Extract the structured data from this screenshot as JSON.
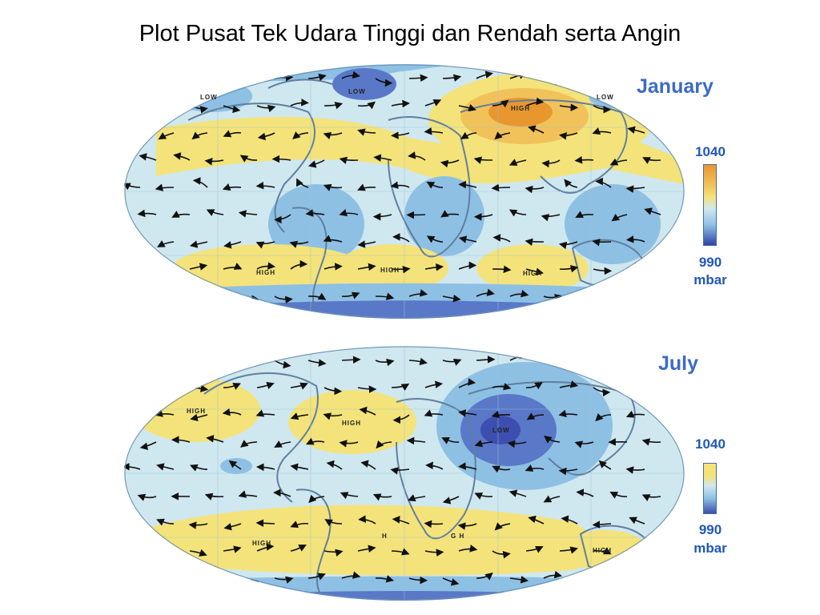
{
  "title": "Plot Pusat Tek Udara Tinggi dan Rendah serta Angin",
  "colors": {
    "high_pressure": "#e8972e",
    "mid_high": "#f4e37a",
    "neutral": "#cfe7ef",
    "mid_low": "#8ec0e4",
    "low_pressure": "#2e44a8"
  },
  "maps": [
    {
      "month": "January",
      "scale_max": "1040",
      "scale_min": "990",
      "scale_unit": "mbar",
      "labels": {
        "low_pacific": "LOW",
        "low_atlantic": "LOW",
        "low_asia": "LOW",
        "high_siberia": "HIGH",
        "high_pacific_s": "HIGH",
        "high_atlantic_s": "HIGH",
        "high_indian_s": "HIGH"
      }
    },
    {
      "month": "July",
      "scale_max": "1040",
      "scale_min": "990",
      "scale_unit": "mbar",
      "labels": {
        "high_pacific_n": "HIGH",
        "high_atlantic_n": "HIGH",
        "low_asia": "LOW",
        "high_pacific_s": "HIGH",
        "high_atlantic_s": "H",
        "high_indian_s": "G H",
        "high_australia": "HIGH"
      }
    }
  ]
}
